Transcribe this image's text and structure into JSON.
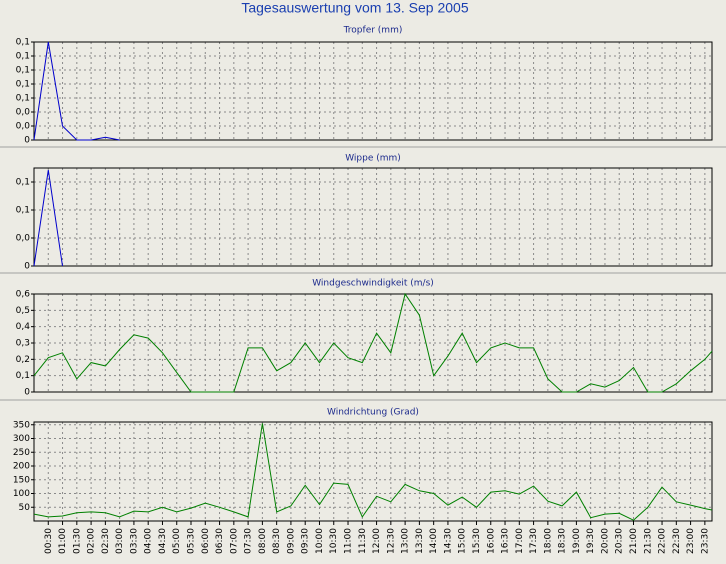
{
  "title": "Tagesauswertung vom 13. Sep 2005",
  "chart_data": [
    {
      "type": "line",
      "title": "Tropfer (mm)",
      "color": "#0000cc",
      "values": [
        0,
        0.14,
        0.02,
        0,
        0,
        0.004,
        0,
        null,
        null,
        null,
        null,
        null,
        null,
        null,
        null,
        null,
        null,
        null,
        null,
        null,
        null,
        null,
        null,
        null,
        null,
        null,
        null,
        null,
        null,
        null,
        null,
        null,
        null,
        null,
        null,
        null,
        null,
        null,
        null,
        null,
        null,
        null,
        null,
        null,
        null,
        null,
        null,
        null,
        null
      ],
      "ylim": [
        0,
        0.14
      ],
      "yticks": [
        0,
        {
          "value": 0.02,
          "label": "0,0"
        },
        {
          "value": 0.04,
          "label": "0,0"
        },
        {
          "value": 0.06,
          "label": "0,1"
        },
        {
          "value": 0.08,
          "label": "0,1"
        },
        {
          "value": 0.1,
          "label": "0,1"
        },
        {
          "value": 0.12,
          "label": "0,1"
        },
        {
          "value": 0.14,
          "label": "0,1"
        }
      ],
      "grid": true
    },
    {
      "type": "line",
      "title": "Wippe (mm)",
      "color": "#0000cc",
      "values": [
        0,
        0.137,
        0,
        null,
        null,
        null,
        null,
        null,
        null,
        null,
        null,
        null,
        null,
        null,
        null,
        null,
        null,
        null,
        null,
        null,
        null,
        null,
        null,
        null,
        null,
        null,
        null,
        null,
        null,
        null,
        null,
        null,
        null,
        null,
        null,
        null,
        null,
        null,
        null,
        null,
        null,
        null,
        null,
        null,
        null,
        null,
        null,
        null,
        null
      ],
      "ylim": [
        0,
        0.14
      ],
      "yticks": [
        0,
        {
          "value": 0.04,
          "label": "0,0"
        },
        {
          "value": 0.08,
          "label": "0,1"
        },
        {
          "value": 0.12,
          "label": "0,1"
        }
      ],
      "grid": true
    },
    {
      "type": "line",
      "title": "Windgeschwindigkeit (m/s)",
      "color": "#008000",
      "values": [
        0.1,
        0.21,
        0.24,
        0.08,
        0.18,
        0.16,
        0.26,
        0.35,
        0.33,
        0.24,
        0.12,
        0,
        0,
        0,
        0,
        0.27,
        0.27,
        0.13,
        0.18,
        0.3,
        0.18,
        0.3,
        0.21,
        0.18,
        0.36,
        0.24,
        0.6,
        0.47,
        0.1,
        0.22,
        0.36,
        0.18,
        0.27,
        0.3,
        0.27,
        0.27,
        0.08,
        0,
        0,
        0.05,
        0.03,
        0.07,
        0.15,
        0,
        0,
        0.05,
        0.13,
        0.2,
        0.25
      ],
      "ylim": [
        0,
        0.6
      ],
      "yticks": [
        0,
        {
          "value": 0.1,
          "label": "0,1"
        },
        {
          "value": 0.2,
          "label": "0,2"
        },
        {
          "value": 0.3,
          "label": "0,3"
        },
        {
          "value": 0.4,
          "label": "0,4"
        },
        {
          "value": 0.5,
          "label": "0,5"
        },
        {
          "value": 0.6,
          "label": "0,6"
        }
      ],
      "grid": true
    },
    {
      "type": "line",
      "title": "Windrichtung (Grad)",
      "color": "#008000",
      "x": [
        0,
        30,
        60,
        90,
        120,
        150,
        180,
        210,
        240,
        270,
        300,
        330,
        360,
        390,
        420,
        450,
        480,
        510,
        540,
        570,
        600,
        630,
        660,
        690,
        720,
        750,
        780,
        810,
        840,
        870,
        900,
        930,
        960,
        990,
        1020,
        1050,
        1080,
        1110,
        1140,
        1170,
        1200,
        1230,
        1260,
        1290,
        1320,
        1350,
        1380,
        1410,
        1425
      ],
      "values": [
        25,
        15,
        18,
        30,
        33,
        30,
        15,
        36,
        33,
        50,
        33,
        47,
        65,
        50,
        33,
        15,
        355,
        33,
        55,
        130,
        60,
        138,
        133,
        15,
        90,
        70,
        133,
        110,
        100,
        58,
        87,
        50,
        105,
        110,
        98,
        127,
        72,
        55,
        105,
        12,
        25,
        28,
        3,
        50,
        123,
        70,
        58,
        45,
        40
      ],
      "xlim": [
        0,
        1425
      ],
      "xticks": [
        {
          "value": 30,
          "label": "00:30"
        },
        {
          "value": 60,
          "label": "01:00"
        },
        {
          "value": 90,
          "label": "01:30"
        },
        {
          "value": 120,
          "label": "02:00"
        },
        {
          "value": 150,
          "label": "02:30"
        },
        {
          "value": 180,
          "label": "03:00"
        },
        {
          "value": 210,
          "label": "03:30"
        },
        {
          "value": 240,
          "label": "04:00"
        },
        {
          "value": 270,
          "label": "04:30"
        },
        {
          "value": 300,
          "label": "05:00"
        },
        {
          "value": 330,
          "label": "05:30"
        },
        {
          "value": 360,
          "label": "06:00"
        },
        {
          "value": 390,
          "label": "06:30"
        },
        {
          "value": 420,
          "label": "07:00"
        },
        {
          "value": 450,
          "label": "07:30"
        },
        {
          "value": 480,
          "label": "08:00"
        },
        {
          "value": 510,
          "label": "08:30"
        },
        {
          "value": 540,
          "label": "09:00"
        },
        {
          "value": 570,
          "label": "09:30"
        },
        {
          "value": 600,
          "label": "10:00"
        },
        {
          "value": 630,
          "label": "10:30"
        },
        {
          "value": 660,
          "label": "11:00"
        },
        {
          "value": 690,
          "label": "11:30"
        },
        {
          "value": 720,
          "label": "12:00"
        },
        {
          "value": 750,
          "label": "12:30"
        },
        {
          "value": 780,
          "label": "13:00"
        },
        {
          "value": 810,
          "label": "13:30"
        },
        {
          "value": 840,
          "label": "14:00"
        },
        {
          "value": 870,
          "label": "14:30"
        },
        {
          "value": 900,
          "label": "15:00"
        },
        {
          "value": 930,
          "label": "15:30"
        },
        {
          "value": 960,
          "label": "16:00"
        },
        {
          "value": 990,
          "label": "16:30"
        },
        {
          "value": 1020,
          "label": "17:00"
        },
        {
          "value": 1050,
          "label": "17:30"
        },
        {
          "value": 1080,
          "label": "18:00"
        },
        {
          "value": 1110,
          "label": "18:30"
        },
        {
          "value": 1140,
          "label": "19:00"
        },
        {
          "value": 1170,
          "label": "19:30"
        },
        {
          "value": 1200,
          "label": "20:00"
        },
        {
          "value": 1230,
          "label": "20:30"
        },
        {
          "value": 1260,
          "label": "21:00"
        },
        {
          "value": 1290,
          "label": "21:30"
        },
        {
          "value": 1320,
          "label": "22:00"
        },
        {
          "value": 1350,
          "label": "22:30"
        },
        {
          "value": 1380,
          "label": "23:00"
        },
        {
          "value": 1410,
          "label": "23:30"
        }
      ],
      "ylim": [
        0,
        360
      ],
      "yticks": [
        50,
        100,
        150,
        200,
        250,
        300,
        350
      ],
      "grid": true
    }
  ]
}
